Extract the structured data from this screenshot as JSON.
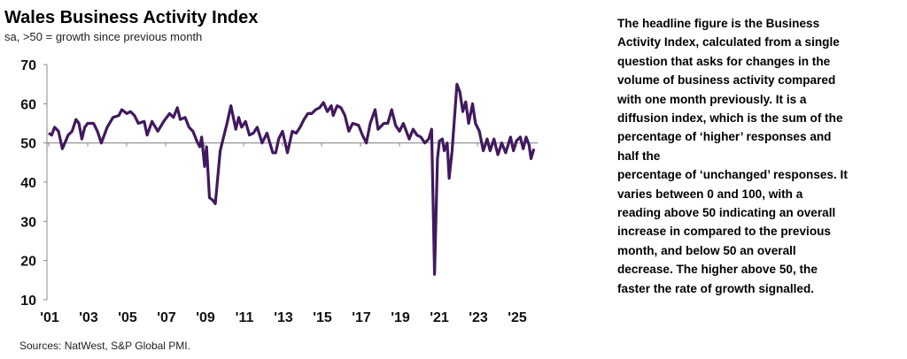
{
  "chart_data": {
    "type": "line",
    "title": "Wales Business Activity Index",
    "subtitle": "sa, >50 = growth  since previous  month",
    "source": "Sources: NatWest, S&P Global PMI.",
    "ylim": [
      10,
      70
    ],
    "yticks": [
      10,
      20,
      30,
      40,
      50,
      60,
      70
    ],
    "xticks": [
      2001,
      2003,
      2005,
      2007,
      2009,
      2011,
      2013,
      2015,
      2017,
      2019,
      2021,
      2023,
      2025
    ],
    "xtick_labels": [
      "'01",
      "'03",
      "'05",
      "'07",
      "'09",
      "'11",
      "'13",
      "'15",
      "'17",
      "'19",
      "'21",
      "'23",
      "'25"
    ],
    "reference_line": 50,
    "color": "#41195f",
    "series": [
      {
        "name": "Wales Business Activity Index",
        "points": [
          [
            2001.0,
            52.5
          ],
          [
            2001.15,
            52
          ],
          [
            2001.3,
            54
          ],
          [
            2001.5,
            53
          ],
          [
            2001.7,
            48.5
          ],
          [
            2002.0,
            52
          ],
          [
            2002.2,
            53
          ],
          [
            2002.4,
            56
          ],
          [
            2002.55,
            55
          ],
          [
            2002.7,
            51
          ],
          [
            2002.85,
            54
          ],
          [
            2003.0,
            55
          ],
          [
            2003.3,
            55
          ],
          [
            2003.5,
            53
          ],
          [
            2003.7,
            50
          ],
          [
            2004.0,
            54
          ],
          [
            2004.3,
            56.5
          ],
          [
            2004.6,
            57
          ],
          [
            2004.75,
            58.5
          ],
          [
            2005.0,
            57.5
          ],
          [
            2005.2,
            58
          ],
          [
            2005.4,
            57
          ],
          [
            2005.6,
            55
          ],
          [
            2005.9,
            55.5
          ],
          [
            2006.05,
            52
          ],
          [
            2006.3,
            55.5
          ],
          [
            2006.6,
            53
          ],
          [
            2006.9,
            55.5
          ],
          [
            2007.2,
            57.5
          ],
          [
            2007.4,
            56.5
          ],
          [
            2007.6,
            59
          ],
          [
            2007.75,
            56
          ],
          [
            2008.0,
            56.5
          ],
          [
            2008.2,
            54
          ],
          [
            2008.4,
            53
          ],
          [
            2008.6,
            50.5
          ],
          [
            2008.75,
            49
          ],
          [
            2008.85,
            51.5
          ],
          [
            2009.0,
            44
          ],
          [
            2009.1,
            49
          ],
          [
            2009.25,
            36
          ],
          [
            2009.4,
            35.5
          ],
          [
            2009.55,
            34.5
          ],
          [
            2009.8,
            48
          ],
          [
            2010.0,
            52
          ],
          [
            2010.15,
            55
          ],
          [
            2010.35,
            59.5
          ],
          [
            2010.6,
            53.5
          ],
          [
            2010.75,
            56.5
          ],
          [
            2010.9,
            54
          ],
          [
            2011.1,
            55.5
          ],
          [
            2011.3,
            52
          ],
          [
            2011.5,
            52.5
          ],
          [
            2011.7,
            54
          ],
          [
            2011.95,
            50
          ],
          [
            2012.2,
            52.5
          ],
          [
            2012.5,
            47.5
          ],
          [
            2012.65,
            47.5
          ],
          [
            2012.8,
            51
          ],
          [
            2013.0,
            53
          ],
          [
            2013.25,
            47.5
          ],
          [
            2013.5,
            53
          ],
          [
            2013.7,
            52.5
          ],
          [
            2013.9,
            54
          ],
          [
            2014.1,
            56
          ],
          [
            2014.3,
            57.5
          ],
          [
            2014.5,
            57.5
          ],
          [
            2014.7,
            58.5
          ],
          [
            2014.9,
            59
          ],
          [
            2015.1,
            60.3
          ],
          [
            2015.3,
            58
          ],
          [
            2015.5,
            59.5
          ],
          [
            2015.6,
            57
          ],
          [
            2015.8,
            59.5
          ],
          [
            2016.0,
            59
          ],
          [
            2016.2,
            57
          ],
          [
            2016.4,
            53
          ],
          [
            2016.6,
            55
          ],
          [
            2016.9,
            54.5
          ],
          [
            2017.1,
            52
          ],
          [
            2017.3,
            50
          ],
          [
            2017.5,
            55
          ],
          [
            2017.75,
            58.5
          ],
          [
            2017.9,
            53.5
          ],
          [
            2018.2,
            55
          ],
          [
            2018.4,
            55
          ],
          [
            2018.6,
            58.5
          ],
          [
            2018.8,
            54.5
          ],
          [
            2019.0,
            53
          ],
          [
            2019.2,
            55
          ],
          [
            2019.5,
            51
          ],
          [
            2019.7,
            53.5
          ],
          [
            2019.9,
            52
          ],
          [
            2020.1,
            51.5
          ],
          [
            2020.3,
            50
          ],
          [
            2020.5,
            51
          ],
          [
            2020.65,
            53.5
          ],
          [
            2020.8,
            16.5
          ],
          [
            2020.95,
            46
          ],
          [
            2021.05,
            50.5
          ],
          [
            2021.2,
            51
          ],
          [
            2021.3,
            48
          ],
          [
            2021.45,
            50
          ],
          [
            2021.55,
            41
          ],
          [
            2021.7,
            48
          ],
          [
            2021.95,
            65
          ],
          [
            2022.1,
            63
          ],
          [
            2022.25,
            58
          ],
          [
            2022.4,
            60.5
          ],
          [
            2022.55,
            55
          ],
          [
            2022.75,
            60
          ],
          [
            2022.9,
            55
          ],
          [
            2023.1,
            53
          ],
          [
            2023.3,
            48
          ],
          [
            2023.5,
            51
          ],
          [
            2023.65,
            48
          ],
          [
            2023.85,
            51
          ],
          [
            2024.05,
            47
          ],
          [
            2024.25,
            50
          ],
          [
            2024.45,
            47.5
          ],
          [
            2024.7,
            51.5
          ],
          [
            2024.85,
            48
          ],
          [
            2025.0,
            50.5
          ],
          [
            2025.2,
            51.5
          ],
          [
            2025.35,
            48.5
          ],
          [
            2025.5,
            51.5
          ],
          [
            2025.65,
            49.5
          ],
          [
            2025.75,
            46
          ],
          [
            2025.9,
            48.5
          ]
        ]
      }
    ]
  },
  "description_lines": [
    "The headline figure is the Business",
    "Activity Index, calculated from a single",
    "question that asks for changes in the",
    "volume of business activity compared",
    "with one month previously. It is a",
    "diffusion index, which is the sum of the",
    "percentage of ‘higher’ responses and",
    "half the",
    "percentage of ‘unchanged’ responses. It",
    "varies between 0 and 100, with a",
    "reading above 50 indicating an overall",
    "increase in compared to the previous",
    "month, and below 50 an overall",
    "decrease. The higher above 50, the",
    "faster the rate of growth signalled."
  ]
}
